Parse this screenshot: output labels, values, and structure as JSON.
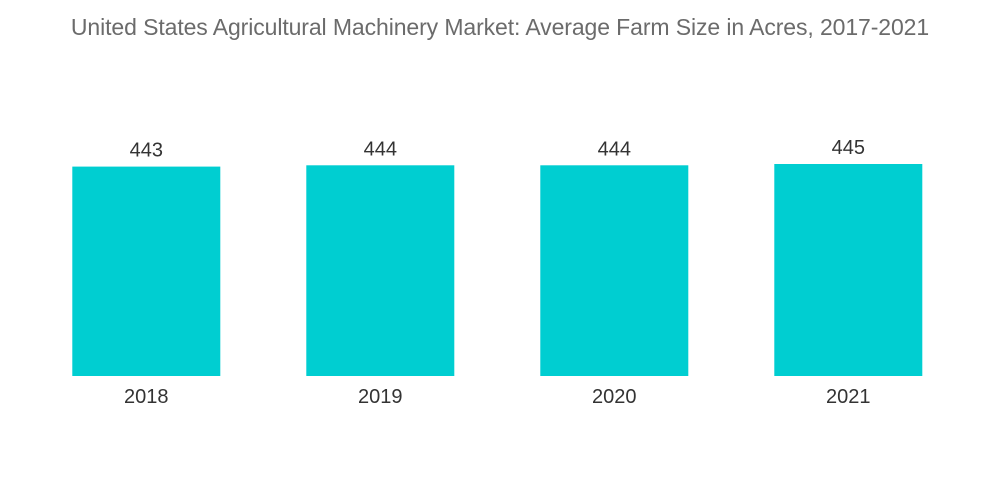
{
  "chart_data": {
    "type": "bar",
    "title": "United States Agricultural Machinery Market: Average Farm Size in Acres, 2017-2021",
    "categories": [
      "2018",
      "2019",
      "2020",
      "2021"
    ],
    "values": [
      443,
      444,
      444,
      445
    ],
    "xlabel": "",
    "ylabel": "",
    "grid": false,
    "legend": "none",
    "data_labels": true,
    "bar_color": "#00CED1"
  }
}
